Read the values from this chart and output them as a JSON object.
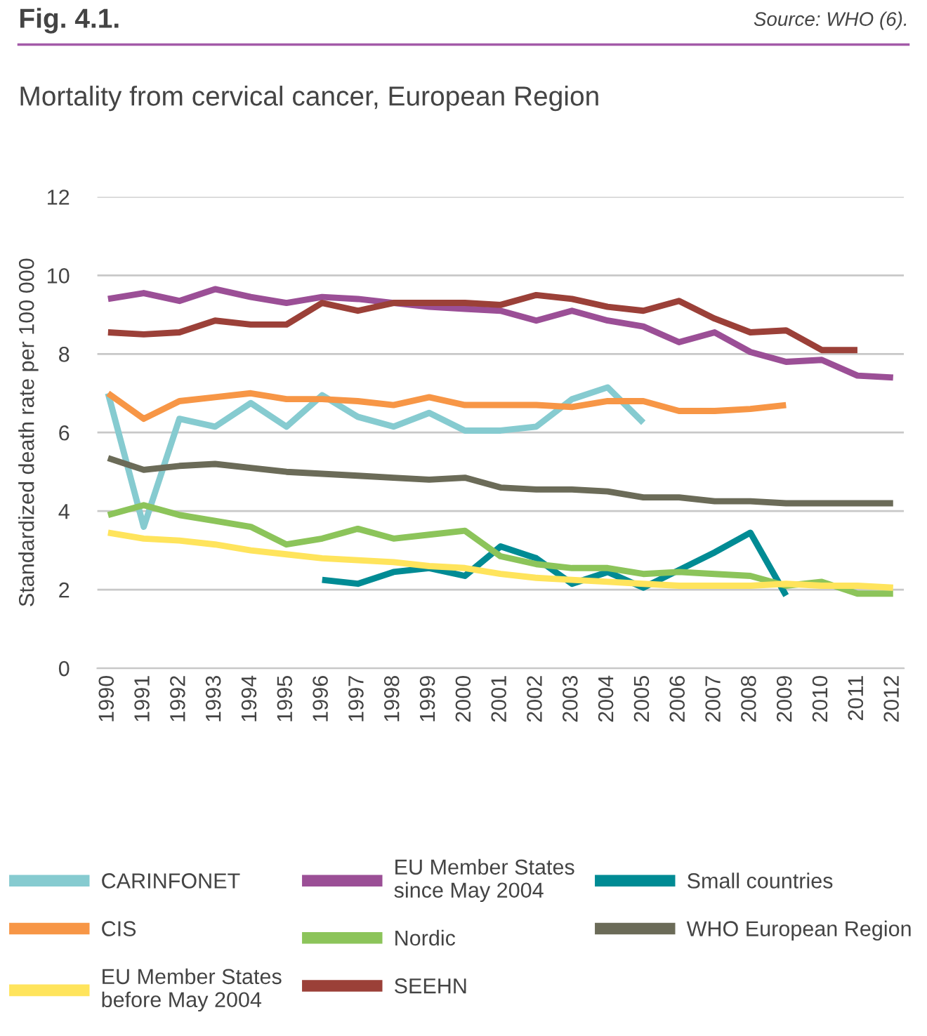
{
  "chart_data": {
    "type": "line",
    "title": "Mortality from cervical cancer, European Region",
    "ylabel": "Standardized death rate per 100 000",
    "annotations": [
      "Fig. 4.1.",
      "Source: WHO (6)."
    ],
    "xlim": [
      1989.7,
      2012.3
    ],
    "xticks": [
      1990,
      1991,
      1992,
      1993,
      1994,
      1995,
      1996,
      1997,
      1998,
      1999,
      2000,
      2001,
      2002,
      2003,
      2004,
      2005,
      2006,
      2007,
      2008,
      2009,
      2010,
      2011,
      2012
    ],
    "ylim": [
      0,
      12
    ],
    "yticks": [
      0,
      2,
      4,
      6,
      8,
      10,
      12
    ],
    "grid": "y",
    "legend": "bottom",
    "marker": "none",
    "line_style": "solid",
    "series": [
      {
        "name": "CARINFONET",
        "color": "#86cbd0",
        "x": [
          1990,
          1991,
          1992,
          1993,
          1994,
          1995,
          1996,
          1997,
          1998,
          1999,
          2000,
          2001,
          2002,
          2003,
          2004,
          2005
        ],
        "values": [
          7.0,
          3.6,
          6.35,
          6.15,
          6.75,
          6.15,
          6.95,
          6.4,
          6.15,
          6.5,
          6.05,
          6.05,
          6.15,
          6.85,
          7.15,
          6.25
        ]
      },
      {
        "name": "EU Member States since May 2004",
        "color": "#9b4f96",
        "x": [
          1990,
          1991,
          1992,
          1993,
          1994,
          1995,
          1996,
          1997,
          1998,
          1999,
          2000,
          2001,
          2002,
          2003,
          2004,
          2005,
          2006,
          2007,
          2008,
          2009,
          2010,
          2011,
          2012
        ],
        "values": [
          9.4,
          9.55,
          9.35,
          9.65,
          9.45,
          9.3,
          9.45,
          9.4,
          9.3,
          9.2,
          9.15,
          9.1,
          8.85,
          9.1,
          8.85,
          8.7,
          8.3,
          8.55,
          8.05,
          7.8,
          7.85,
          7.45,
          7.4
        ]
      },
      {
        "name": "Small countries",
        "color": "#008b94",
        "x": [
          1996,
          1997,
          1998,
          1999,
          2000,
          2001,
          2002,
          2003,
          2004,
          2005,
          2006,
          2007,
          2008,
          2009
        ],
        "values": [
          2.25,
          2.15,
          2.45,
          2.55,
          2.35,
          3.1,
          2.8,
          2.15,
          2.45,
          2.05,
          2.5,
          2.95,
          3.45,
          1.85
        ]
      },
      {
        "name": "CIS",
        "color": "#f79646",
        "x": [
          1990,
          1991,
          1992,
          1993,
          1994,
          1995,
          1996,
          1997,
          1998,
          1999,
          2000,
          2001,
          2002,
          2003,
          2004,
          2005,
          2006,
          2007,
          2008,
          2009
        ],
        "values": [
          7.0,
          6.35,
          6.8,
          6.9,
          7.0,
          6.85,
          6.85,
          6.8,
          6.7,
          6.9,
          6.7,
          6.7,
          6.7,
          6.65,
          6.8,
          6.8,
          6.55,
          6.55,
          6.6,
          6.7
        ]
      },
      {
        "name": "Nordic",
        "color": "#8cc45a",
        "x": [
          1990,
          1991,
          1992,
          1993,
          1994,
          1995,
          1996,
          1997,
          1998,
          1999,
          2000,
          2001,
          2002,
          2003,
          2004,
          2005,
          2006,
          2007,
          2008,
          2009,
          2010,
          2011,
          2012
        ],
        "values": [
          3.9,
          4.15,
          3.9,
          3.75,
          3.6,
          3.15,
          3.3,
          3.55,
          3.3,
          3.4,
          3.5,
          2.85,
          2.65,
          2.55,
          2.55,
          2.4,
          2.45,
          2.4,
          2.35,
          2.1,
          2.2,
          1.9,
          1.9
        ]
      },
      {
        "name": "WHO European Region",
        "color": "#6b6b58",
        "x": [
          1990,
          1991,
          1992,
          1993,
          1994,
          1995,
          1996,
          1997,
          1998,
          1999,
          2000,
          2001,
          2002,
          2003,
          2004,
          2005,
          2006,
          2007,
          2008,
          2009,
          2010,
          2011,
          2012
        ],
        "values": [
          5.35,
          5.05,
          5.15,
          5.2,
          5.1,
          5.0,
          4.95,
          4.9,
          4.85,
          4.8,
          4.85,
          4.6,
          4.55,
          4.55,
          4.5,
          4.35,
          4.35,
          4.25,
          4.25,
          4.2,
          4.2,
          4.2,
          4.2
        ]
      },
      {
        "name": "EU Member States before May 2004",
        "color": "#ffe45c",
        "x": [
          1990,
          1991,
          1992,
          1993,
          1994,
          1995,
          1996,
          1997,
          1998,
          1999,
          2000,
          2001,
          2002,
          2003,
          2004,
          2005,
          2006,
          2007,
          2008,
          2009,
          2010,
          2011,
          2012
        ],
        "values": [
          3.45,
          3.3,
          3.25,
          3.15,
          3.0,
          2.9,
          2.8,
          2.75,
          2.7,
          2.6,
          2.55,
          2.4,
          2.3,
          2.25,
          2.2,
          2.15,
          2.1,
          2.1,
          2.1,
          2.15,
          2.1,
          2.1,
          2.05
        ]
      },
      {
        "name": "SEEHN",
        "color": "#9b4038",
        "x": [
          1990,
          1991,
          1992,
          1993,
          1994,
          1995,
          1996,
          1997,
          1998,
          1999,
          2000,
          2001,
          2002,
          2003,
          2004,
          2005,
          2006,
          2007,
          2008,
          2009,
          2010,
          2011
        ],
        "values": [
          8.55,
          8.5,
          8.55,
          8.85,
          8.75,
          8.75,
          9.3,
          9.1,
          9.3,
          9.3,
          9.3,
          9.25,
          9.5,
          9.4,
          9.2,
          9.1,
          9.35,
          8.9,
          8.55,
          8.6,
          8.1,
          8.1
        ]
      }
    ]
  }
}
